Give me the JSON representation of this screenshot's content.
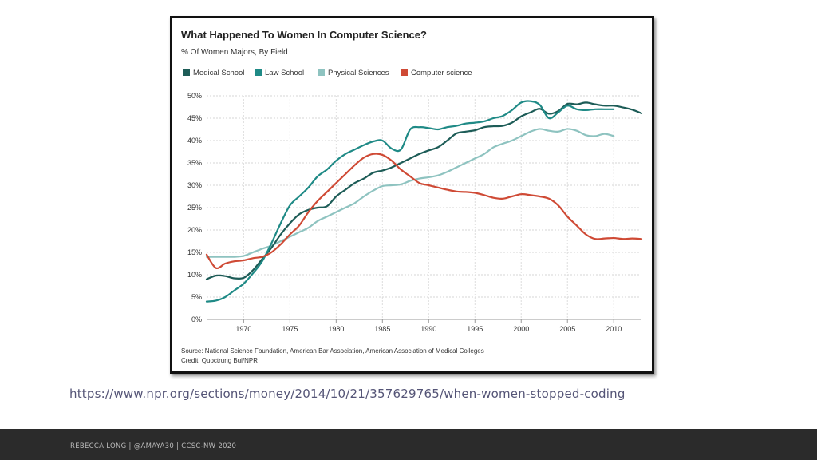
{
  "link": {
    "url_text": "https://www.npr.org/sections/money/2014/10/21/357629765/when-women-stopped-coding"
  },
  "footer": {
    "text": "REBECCA LONG | @AMAYA30 | CCSC-NW 2020"
  },
  "chart_data": {
    "type": "line",
    "title": "What Happened To Women In Computer Science?",
    "subtitle": "% Of Women Majors, By Field",
    "source": "Source: National Science Foundation, American Bar Association, American Association of Medical Colleges",
    "credit": "Credit: Quoctrung Bui/NPR",
    "xlim": [
      1966,
      2013
    ],
    "ylim": [
      0,
      50
    ],
    "x_ticks": [
      1970,
      1975,
      1980,
      1985,
      1990,
      1995,
      2000,
      2005,
      2010
    ],
    "y_ticks": [
      0,
      5,
      10,
      15,
      20,
      25,
      30,
      35,
      40,
      45,
      50
    ],
    "y_tick_labels": [
      "0%",
      "5%",
      "10%",
      "15%",
      "20%",
      "25%",
      "30%",
      "35%",
      "40%",
      "45%",
      "50%"
    ],
    "grid": true,
    "legend_position": "top-left",
    "series": [
      {
        "name": "Medical School",
        "color": "#1d5c57",
        "x": [
          1966,
          1967,
          1968,
          1969,
          1970,
          1971,
          1972,
          1973,
          1974,
          1975,
          1976,
          1977,
          1978,
          1979,
          1980,
          1981,
          1982,
          1983,
          1984,
          1985,
          1986,
          1987,
          1988,
          1989,
          1990,
          1991,
          1992,
          1993,
          1994,
          1995,
          1996,
          1997,
          1998,
          1999,
          2000,
          2001,
          2002,
          2003,
          2004,
          2005,
          2006,
          2007,
          2008,
          2009,
          2010,
          2011,
          2012,
          2013
        ],
        "y": [
          9,
          9.8,
          9.7,
          9.2,
          9.3,
          11,
          13.5,
          16,
          19,
          21.5,
          23.5,
          24.5,
          25,
          25.3,
          27.5,
          29,
          30.5,
          31.5,
          32.8,
          33.3,
          34,
          35,
          36,
          37,
          37.8,
          38.5,
          40,
          41.6,
          42,
          42.3,
          43,
          43.2,
          43.3,
          44,
          45.4,
          46.3,
          47.1,
          46,
          46.6,
          48.2,
          48.1,
          48.5,
          48.1,
          47.8,
          47.8,
          47.4,
          46.9,
          46.1
        ]
      },
      {
        "name": "Law School",
        "color": "#1f8a86",
        "x": [
          1966,
          1967,
          1968,
          1969,
          1970,
          1971,
          1972,
          1973,
          1974,
          1975,
          1976,
          1977,
          1978,
          1979,
          1980,
          1981,
          1982,
          1983,
          1984,
          1985,
          1986,
          1987,
          1988,
          1989,
          1990,
          1991,
          1992,
          1993,
          1994,
          1995,
          1996,
          1997,
          1998,
          1999,
          2000,
          2001,
          2002,
          2003,
          2004,
          2005,
          2006,
          2007,
          2008,
          2009,
          2010
        ],
        "y": [
          4,
          4.2,
          5,
          6.5,
          8,
          10.3,
          13,
          17,
          21.5,
          25.5,
          27.5,
          29.5,
          32,
          33.5,
          35.5,
          37,
          38,
          39,
          39.8,
          40,
          38.2,
          38,
          42.5,
          43,
          42.8,
          42.5,
          43,
          43.3,
          43.8,
          44,
          44.3,
          45,
          45.5,
          46.8,
          48.5,
          48.8,
          48,
          45,
          46.3,
          47.8,
          47,
          46.8,
          47,
          47,
          47
        ]
      },
      {
        "name": "Physical Sciences",
        "color": "#8ec3c0",
        "x": [
          1966,
          1967,
          1968,
          1969,
          1970,
          1971,
          1972,
          1973,
          1974,
          1975,
          1976,
          1977,
          1978,
          1979,
          1980,
          1981,
          1982,
          1983,
          1984,
          1985,
          1986,
          1987,
          1988,
          1989,
          1990,
          1991,
          1992,
          1993,
          1994,
          1995,
          1996,
          1997,
          1998,
          1999,
          2000,
          2001,
          2002,
          2003,
          2004,
          2005,
          2006,
          2007,
          2008,
          2009,
          2010
        ],
        "y": [
          14,
          14,
          14,
          14,
          14.2,
          15,
          15.8,
          16.5,
          17.5,
          18.5,
          19.5,
          20.5,
          22,
          23,
          24,
          25,
          26,
          27.5,
          28.8,
          29.8,
          30,
          30.2,
          31,
          31.5,
          31.8,
          32.2,
          33,
          34,
          35,
          36,
          37,
          38.5,
          39.3,
          40,
          41,
          42,
          42.6,
          42.2,
          42,
          42.6,
          42.2,
          41.2,
          41,
          41.5,
          41
        ]
      },
      {
        "name": "Computer science",
        "color": "#cf4a35",
        "x": [
          1966,
          1967,
          1968,
          1969,
          1970,
          1971,
          1972,
          1973,
          1974,
          1975,
          1976,
          1977,
          1978,
          1979,
          1980,
          1981,
          1982,
          1983,
          1984,
          1985,
          1986,
          1987,
          1988,
          1989,
          1990,
          1991,
          1992,
          1993,
          1994,
          1995,
          1996,
          1997,
          1998,
          1999,
          2000,
          2001,
          2002,
          2003,
          2004,
          2005,
          2006,
          2007,
          2008,
          2009,
          2010,
          2011,
          2012,
          2013
        ],
        "y": [
          14.5,
          11.5,
          12.5,
          13,
          13.2,
          13.7,
          14,
          15,
          16.8,
          19,
          21,
          24,
          26.5,
          28.5,
          30.5,
          32.5,
          34.5,
          36.2,
          37,
          36.8,
          35.5,
          33.5,
          32,
          30.5,
          30,
          29.5,
          29,
          28.6,
          28.5,
          28.3,
          27.8,
          27.2,
          27,
          27.5,
          28,
          27.8,
          27.5,
          27,
          25.5,
          23,
          21,
          19,
          18,
          18.1,
          18.2,
          18,
          18.1,
          18
        ]
      }
    ]
  }
}
